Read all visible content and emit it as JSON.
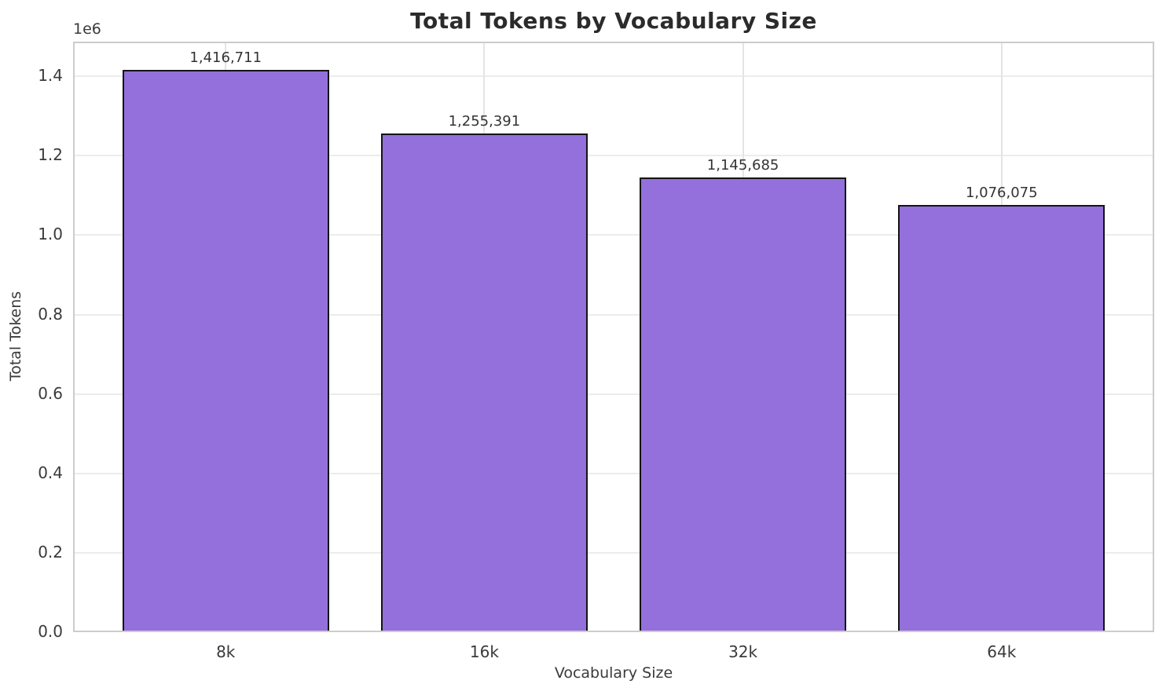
{
  "figure": {
    "background": "#ffffff"
  },
  "chart_data": {
    "type": "bar",
    "title": "Total Tokens by Vocabulary Size",
    "xlabel": "Vocabulary Size",
    "ylabel": "Total Tokens",
    "categories": [
      "8k",
      "16k",
      "32k",
      "64k"
    ],
    "values": [
      1416711,
      1255391,
      1145685,
      1076075
    ],
    "value_labels": [
      "1,416,711",
      "1,255,391",
      "1,145,685",
      "1,076,075"
    ],
    "ylim": [
      0,
      1487547
    ],
    "xlim": [
      -0.59,
      3.59
    ],
    "yticks": [
      0,
      200000,
      400000,
      600000,
      800000,
      1000000,
      1200000,
      1400000
    ],
    "ytick_labels": [
      "0.0",
      "0.2",
      "0.4",
      "0.6",
      "0.8",
      "1.0",
      "1.2",
      "1.4"
    ],
    "offset_label": "1e6",
    "grid": true,
    "legend": false,
    "bar_width_fraction": 0.8,
    "colors": {
      "bar_fill": "#9370DB",
      "bar_edge": "#141414",
      "grid_h": "#ececec",
      "grid_v": "#e4e4e4",
      "spine": "#cccccc",
      "title_text": "#2b2b2b",
      "axis_text": "#3a3a3a",
      "value_text": "#333333"
    }
  }
}
